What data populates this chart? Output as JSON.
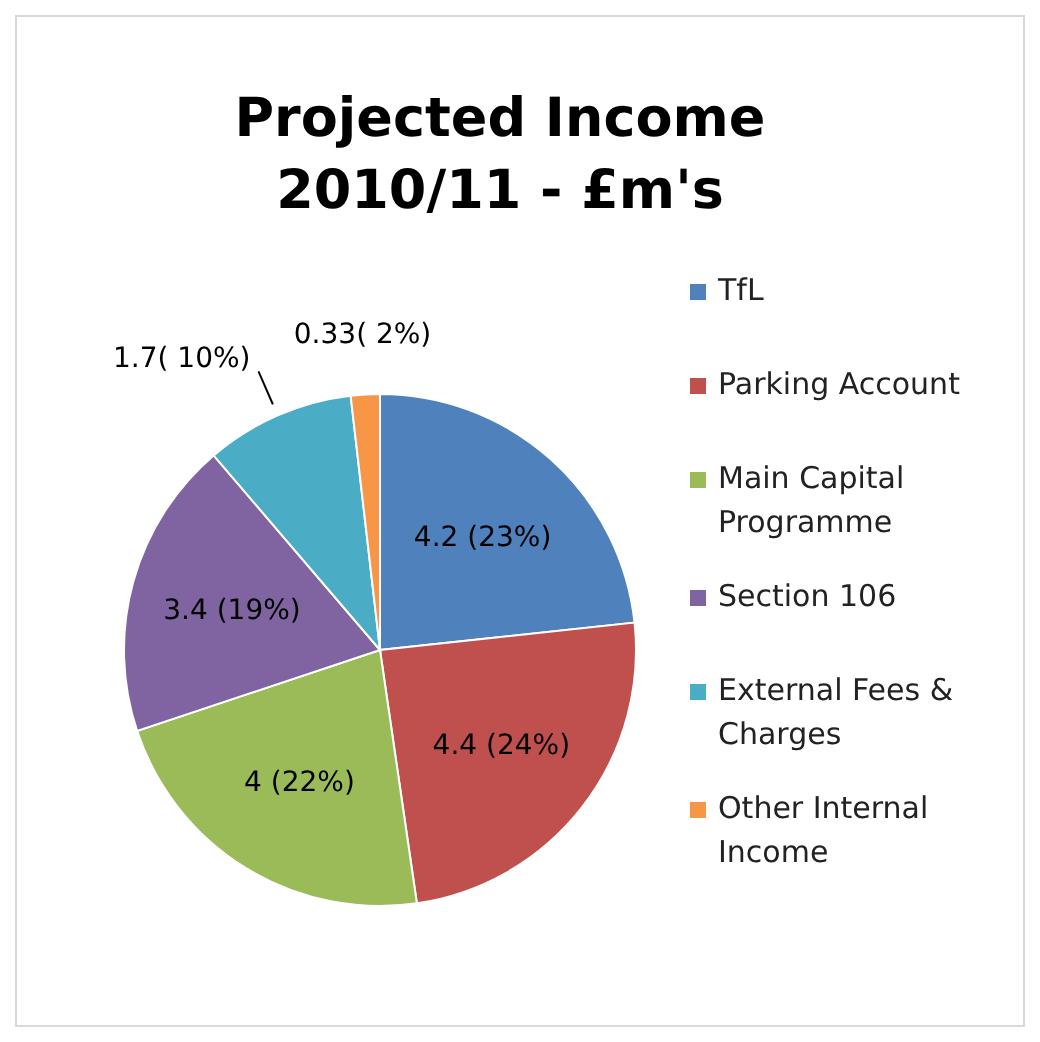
{
  "chart_data": {
    "type": "pie",
    "title": "Projected Income 2010/11 - £m's",
    "categories": [
      "TfL",
      "Parking Account",
      "Main Capital Programme",
      "Section 106",
      "External Fees & Charges",
      "Other Internal Income"
    ],
    "values": [
      4.2,
      4.4,
      4,
      3.4,
      1.7,
      0.33
    ],
    "value_labels": [
      "4.2 (23%)",
      "4.4 (24%)",
      "4 (22%)",
      "3.4 (19%)",
      "1.7( 10%)",
      "0.33( 2%)"
    ],
    "colors": [
      "#4f81bd",
      "#c0504d",
      "#9bbb59",
      "#8064a2",
      "#4bacc6",
      "#f79646"
    ],
    "legend": "right"
  }
}
